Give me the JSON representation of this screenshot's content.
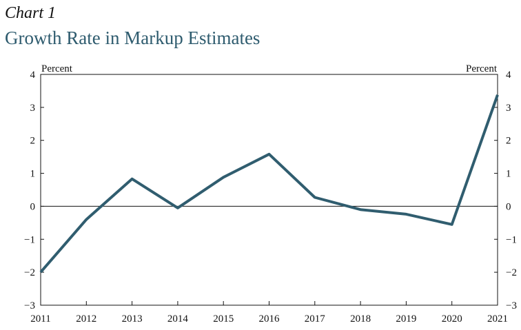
{
  "header": {
    "kicker": "Chart 1",
    "title": "Growth Rate in Markup Estimates"
  },
  "colors": {
    "title": "#2e5b6e",
    "line": "#305d6f",
    "axis": "#111111"
  },
  "chart_data": {
    "type": "line",
    "title": "Growth Rate in Markup Estimates",
    "left_unit_label": "Percent",
    "right_unit_label": "Percent",
    "x": [
      "2011",
      "2012",
      "2013",
      "2014",
      "2015",
      "2016",
      "2017",
      "2018",
      "2019",
      "2020",
      "2021"
    ],
    "series": [
      {
        "values": [
          -2.0,
          -0.4,
          0.83,
          -0.05,
          0.88,
          1.58,
          0.27,
          -0.1,
          -0.24,
          -0.55,
          3.38
        ]
      }
    ],
    "ylim": [
      -3,
      4
    ],
    "yticks": [
      4,
      3,
      2,
      1,
      0,
      -1,
      -2,
      -3
    ],
    "ytick_labels": [
      "4",
      "3",
      "2",
      "1",
      "0",
      "−1",
      "−2",
      "−3"
    ],
    "zero_line": true,
    "grid": false,
    "legend": "none"
  }
}
